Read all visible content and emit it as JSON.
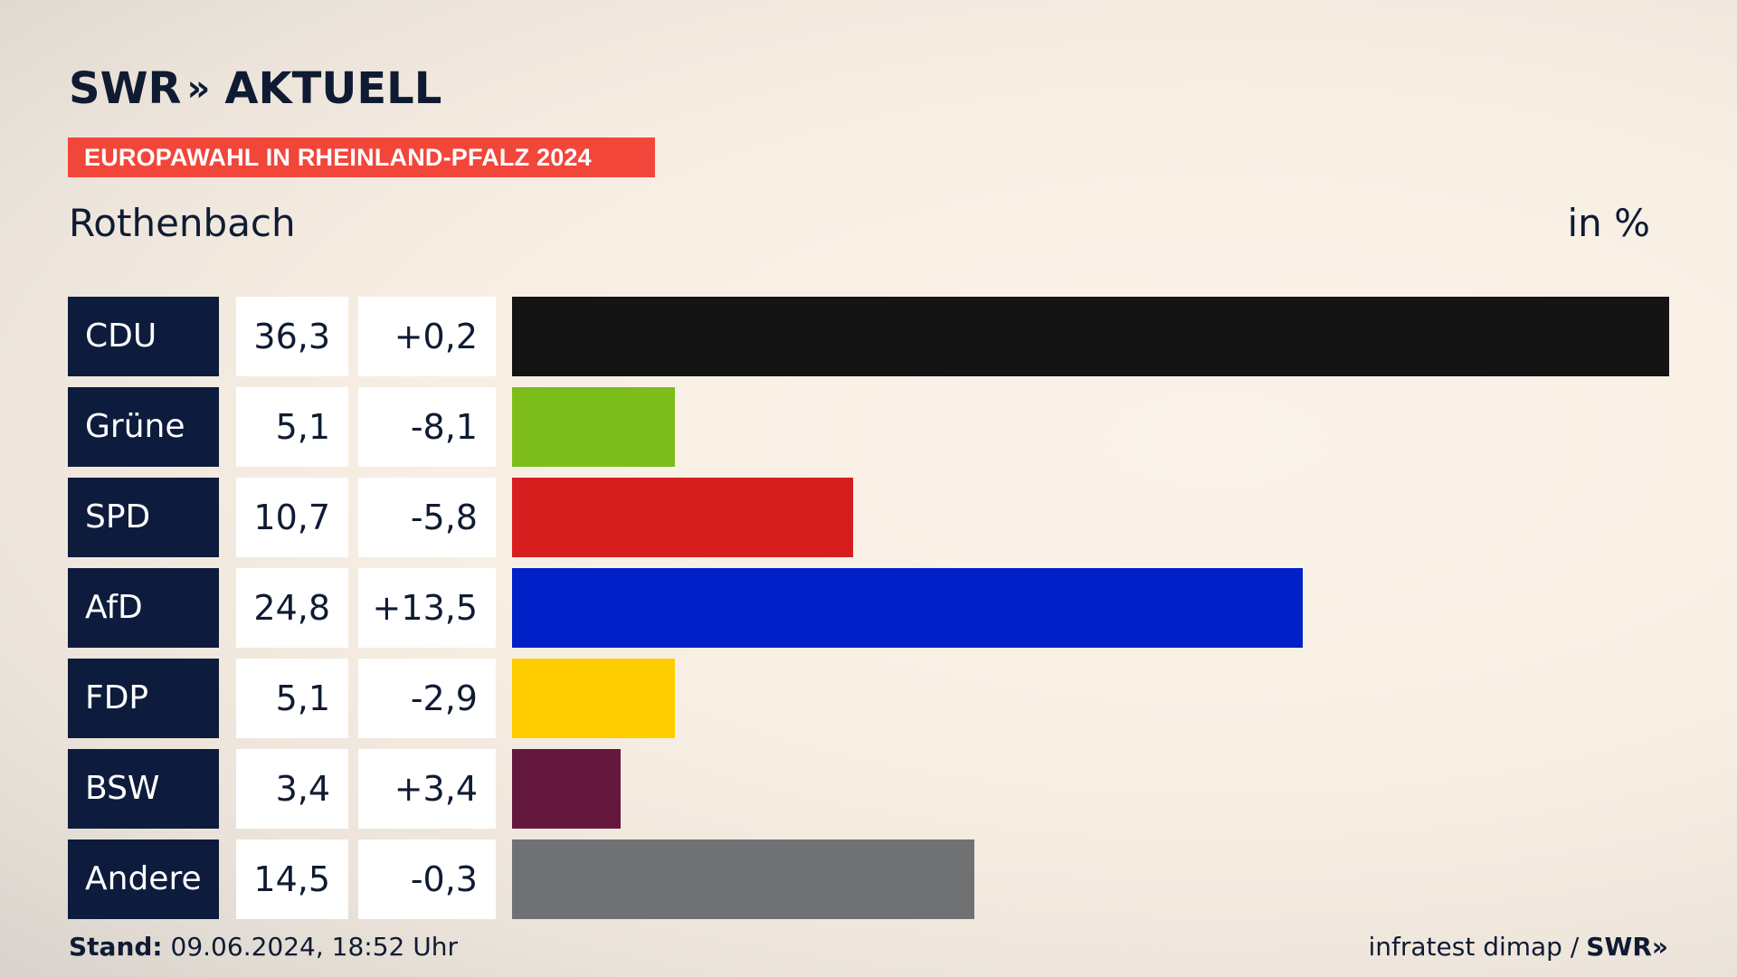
{
  "header": {
    "logo_main": "SWR",
    "logo_chevron": "»",
    "logo_sub": "AKTUELL",
    "banner": "EUROPAWAHL IN RHEINLAND-PFALZ 2024",
    "place": "Rothenbach",
    "unit": "in %"
  },
  "chart_data": {
    "type": "bar",
    "orientation": "horizontal",
    "title": "Rothenbach",
    "ylabel": "in %",
    "categories": [
      "CDU",
      "Grüne",
      "SPD",
      "AfD",
      "FDP",
      "BSW",
      "Andere"
    ],
    "values": [
      36.3,
      5.1,
      10.7,
      24.8,
      5.1,
      3.4,
      14.5
    ],
    "value_labels": [
      "36,3",
      "5,1",
      "10,7",
      "24,8",
      "5,1",
      "3,4",
      "14,5"
    ],
    "change_labels": [
      "+0,2",
      "-8,1",
      "-5,8",
      "+13,5",
      "-2,9",
      "+3,4",
      "-0,3"
    ],
    "colors": [
      "#141414",
      "#7cbd1c",
      "#d61e1e",
      "#0021c8",
      "#ffcc00",
      "#65183e",
      "#707173"
    ],
    "xlim": [
      0,
      36.3
    ]
  },
  "footer": {
    "stand_label": "Stand:",
    "stand_value": "09.06.2024, 18:52 Uhr",
    "source": "infratest dimap /",
    "source_logo": "SWR»"
  }
}
